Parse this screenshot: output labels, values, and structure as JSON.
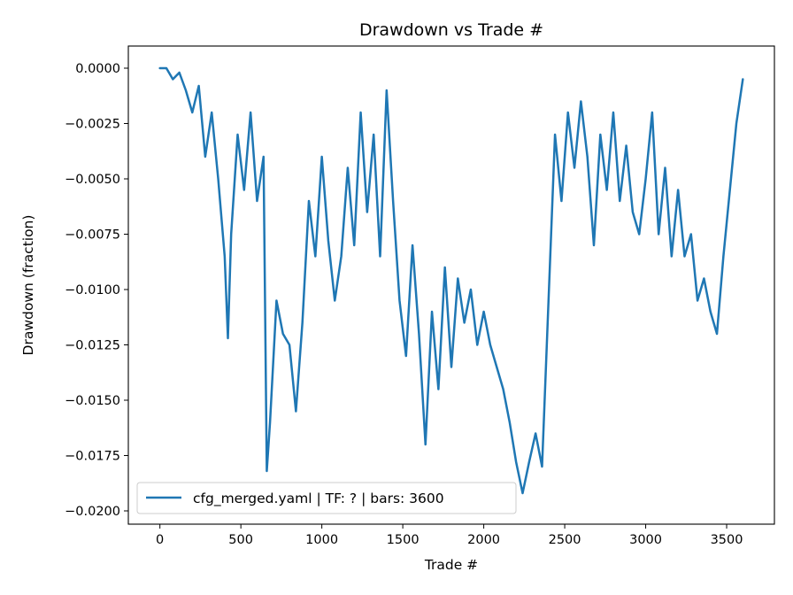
{
  "chart_data": {
    "type": "line",
    "title": "Drawdown vs Trade #",
    "xlabel": "Trade #",
    "ylabel": "Drawdown (fraction)",
    "xlim": [
      -195,
      3795
    ],
    "ylim": [
      -0.0206,
      0.001
    ],
    "xticks": [
      0,
      500,
      1000,
      1500,
      2000,
      2500,
      3000,
      3500
    ],
    "xtick_labels": [
      "0",
      "500",
      "1000",
      "1500",
      "2000",
      "2500",
      "3000",
      "3500"
    ],
    "yticks": [
      0,
      -0.0025,
      -0.005,
      -0.0075,
      -0.01,
      -0.0125,
      -0.015,
      -0.0175,
      -0.02
    ],
    "ytick_labels": [
      "0.0000",
      "−0.0025",
      "−0.0050",
      "−0.0075",
      "−0.0100",
      "−0.0125",
      "−0.0150",
      "−0.0175",
      "−0.0200"
    ],
    "grid": false,
    "legend_position": "lower-left",
    "series": [
      {
        "name": "cfg_merged.yaml | TF: ? | bars: 3600",
        "color": "#1f77b4",
        "x": [
          0,
          40,
          80,
          120,
          160,
          200,
          240,
          280,
          320,
          360,
          400,
          420,
          440,
          480,
          520,
          560,
          600,
          640,
          660,
          680,
          720,
          760,
          800,
          840,
          880,
          920,
          960,
          1000,
          1040,
          1080,
          1120,
          1160,
          1200,
          1240,
          1280,
          1320,
          1360,
          1400,
          1440,
          1480,
          1520,
          1560,
          1600,
          1640,
          1680,
          1720,
          1760,
          1800,
          1840,
          1880,
          1920,
          1960,
          2000,
          2040,
          2080,
          2120,
          2160,
          2200,
          2240,
          2280,
          2320,
          2360,
          2400,
          2440,
          2480,
          2520,
          2560,
          2600,
          2640,
          2680,
          2720,
          2760,
          2800,
          2840,
          2880,
          2920,
          2960,
          3000,
          3040,
          3080,
          3120,
          3160,
          3200,
          3240,
          3280,
          3320,
          3360,
          3400,
          3440,
          3480,
          3520,
          3560,
          3600
        ],
        "y": [
          0,
          0,
          -0.0005,
          -0.0002,
          -0.001,
          -0.002,
          -0.0008,
          -0.004,
          -0.002,
          -0.005,
          -0.0085,
          -0.0122,
          -0.0075,
          -0.003,
          -0.0055,
          -0.002,
          -0.006,
          -0.004,
          -0.0182,
          -0.016,
          -0.0105,
          -0.012,
          -0.0125,
          -0.0155,
          -0.0115,
          -0.006,
          -0.0085,
          -0.004,
          -0.0078,
          -0.0105,
          -0.0085,
          -0.0045,
          -0.008,
          -0.002,
          -0.0065,
          -0.003,
          -0.0085,
          -0.001,
          -0.006,
          -0.0105,
          -0.013,
          -0.008,
          -0.012,
          -0.017,
          -0.011,
          -0.0145,
          -0.009,
          -0.0135,
          -0.0095,
          -0.0115,
          -0.01,
          -0.0125,
          -0.011,
          -0.0125,
          -0.0135,
          -0.0145,
          -0.016,
          -0.0178,
          -0.0192,
          -0.0178,
          -0.0165,
          -0.018,
          -0.0105,
          -0.003,
          -0.006,
          -0.002,
          -0.0045,
          -0.0015,
          -0.004,
          -0.008,
          -0.003,
          -0.0055,
          -0.002,
          -0.006,
          -0.0035,
          -0.0065,
          -0.0075,
          -0.005,
          -0.002,
          -0.0075,
          -0.0045,
          -0.0085,
          -0.0055,
          -0.0085,
          -0.0075,
          -0.0105,
          -0.0095,
          -0.011,
          -0.012,
          -0.0085,
          -0.0055,
          -0.0025,
          -0.0005
        ]
      }
    ]
  }
}
